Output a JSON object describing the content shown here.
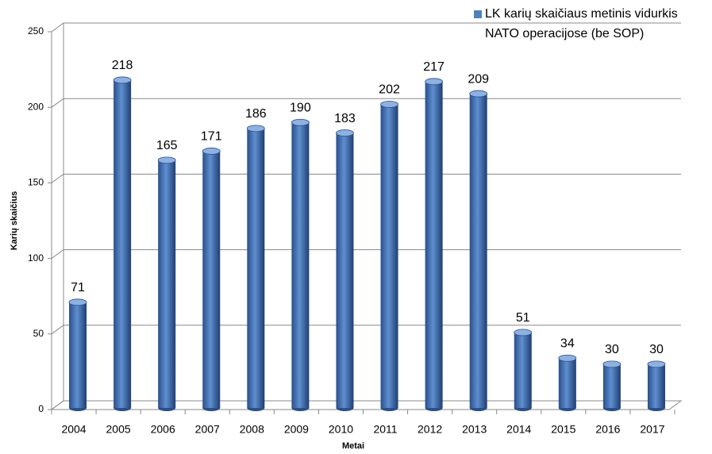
{
  "chart_data": {
    "type": "bar",
    "categories": [
      "2004",
      "2005",
      "2006",
      "2007",
      "2008",
      "2009",
      "2010",
      "2011",
      "2012",
      "2013",
      "2014",
      "2015",
      "2016",
      "2017"
    ],
    "series": [
      {
        "name": "LK karių skaičiaus metinis vidurkis NATO operacijose (be SOP)",
        "color": "#4f81bd",
        "values": [
          71,
          218,
          165,
          171,
          186,
          190,
          183,
          202,
          217,
          209,
          51,
          34,
          30,
          30
        ]
      }
    ],
    "x_label": "Metai",
    "y_label": "Karių skaičius",
    "ylim": [
      0,
      250
    ],
    "yticks": [
      0,
      50,
      100,
      150,
      200,
      250
    ],
    "grid": true,
    "legend": "top-right"
  }
}
